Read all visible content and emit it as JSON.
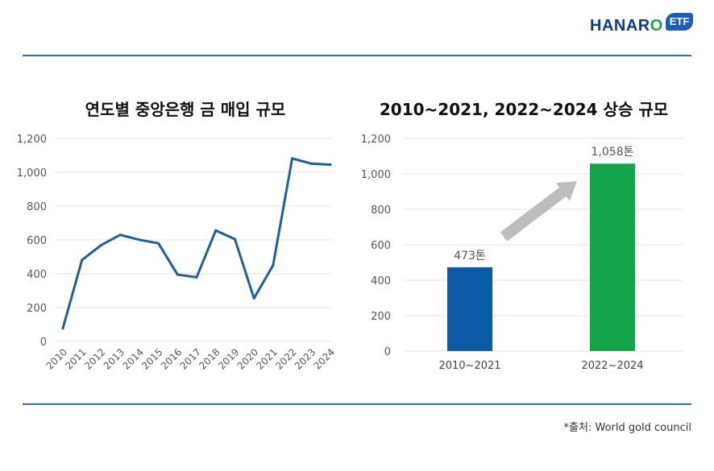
{
  "logo": {
    "text_main": "HANAR",
    "text_o": "O",
    "badge": "ETF"
  },
  "source_note": "*출처: World gold council",
  "chart_data": [
    {
      "type": "line",
      "title": "연도별 중앙은행 금 매입 규모",
      "x": [
        "2010",
        "2011",
        "2012",
        "2013",
        "2014",
        "2015",
        "2016",
        "2017",
        "2018",
        "2019",
        "2020",
        "2021",
        "2022",
        "2023",
        "2024"
      ],
      "series": [
        {
          "values": [
            77,
            481,
            569,
            630,
            601,
            580,
            395,
            379,
            656,
            605,
            255,
            450,
            1082,
            1051,
            1045
          ]
        }
      ],
      "ylim": [
        0,
        1200
      ],
      "yticks": [
        0,
        200,
        400,
        600,
        800,
        1000,
        1200
      ],
      "ytick_labels": [
        "0",
        "200",
        "400",
        "600",
        "800",
        "1,000",
        "1,200"
      ],
      "grid": true,
      "color": "#1f5fa0"
    },
    {
      "type": "bar",
      "title": "2010~2021, 2022~2024 상승 규모",
      "categories": [
        "2010~2021",
        "2022~2024"
      ],
      "values": [
        473,
        1058
      ],
      "data_labels": [
        "473톤",
        "1,058톤"
      ],
      "colors": [
        "#0b5aa6",
        "#13a54a"
      ],
      "ylim": [
        0,
        1200
      ],
      "yticks": [
        0,
        200,
        400,
        600,
        800,
        1000,
        1200
      ],
      "ytick_labels": [
        "0",
        "200",
        "400",
        "600",
        "800",
        "1,000",
        "1,200"
      ],
      "grid": true,
      "arrow": "increase"
    }
  ]
}
